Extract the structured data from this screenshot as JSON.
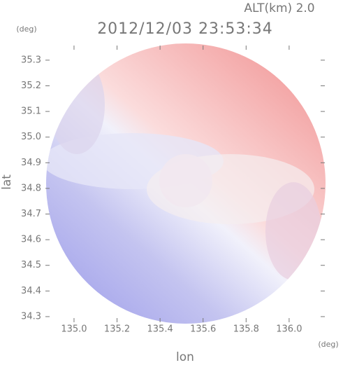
{
  "chart_data": {
    "type": "radar-image",
    "title": "2012/12/03 23:53:34",
    "annotation": "ALT(km) 2.0",
    "x_label": "lon",
    "y_label": "lat",
    "x_unit": "(deg)",
    "y_unit": "(deg)",
    "xlim": [
      134.867,
      136.166
    ],
    "ylim": [
      34.278,
      35.357
    ],
    "xticks": [
      {
        "value": 135,
        "label": "135.0"
      },
      135.2,
      135.4,
      135.6,
      135.8,
      {
        "value": 136,
        "label": "136.0"
      }
    ],
    "yticks": [
      34.3,
      34.4,
      34.5,
      34.6,
      34.7,
      34.8,
      34.9,
      {
        "value": 35,
        "label": "35.0"
      },
      35.1,
      35.2,
      35.3
    ]
  }
}
